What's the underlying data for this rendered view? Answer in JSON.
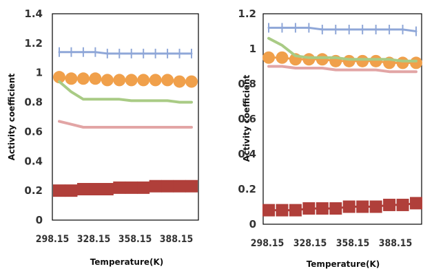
{
  "chart_data": [
    {
      "type": "line",
      "xlabel": "Temperature(K)",
      "ylabel": "Activity coefficient",
      "ylim": [
        0,
        1.4
      ],
      "yticks": [
        "0",
        "0.2",
        "0.4",
        "0.6",
        "0.8",
        "1",
        "1.2",
        "1.4"
      ],
      "xticks": [
        "298.15",
        "328.15",
        "358.15",
        "388.15"
      ],
      "x": [
        298.15,
        308.15,
        318.15,
        328.15,
        338.15,
        348.15,
        358.15,
        368.15,
        378.15,
        388.15,
        398.15,
        408.15
      ],
      "series": [
        {
          "color": "#8FA7D8",
          "marker": "cross",
          "values": [
            1.14,
            1.14,
            1.14,
            1.14,
            1.13,
            1.13,
            1.13,
            1.13,
            1.13,
            1.13,
            1.13,
            1.13
          ]
        },
        {
          "color": "#F0A04B",
          "marker": "circle",
          "values": [
            0.97,
            0.96,
            0.96,
            0.96,
            0.95,
            0.95,
            0.95,
            0.95,
            0.95,
            0.95,
            0.94,
            0.94
          ]
        },
        {
          "color": "#A9CB85",
          "marker": "line",
          "values": [
            0.94,
            0.87,
            0.82,
            0.82,
            0.82,
            0.82,
            0.81,
            0.81,
            0.81,
            0.81,
            0.8,
            0.8
          ]
        },
        {
          "color": "#E2A5A5",
          "marker": "line",
          "values": [
            0.67,
            0.65,
            0.63,
            0.63,
            0.63,
            0.63,
            0.63,
            0.63,
            0.63,
            0.63,
            0.63,
            0.63
          ]
        },
        {
          "color": "#B03F3A",
          "marker": "square",
          "values": [
            0.2,
            0.2,
            0.21,
            0.21,
            0.21,
            0.22,
            0.22,
            0.22,
            0.23,
            0.23,
            0.23,
            0.23
          ]
        }
      ]
    },
    {
      "type": "line",
      "xlabel": "Temperature(K)",
      "ylabel": "Activity coefficient",
      "ylim": [
        0,
        1.2
      ],
      "yticks": [
        "0",
        "0.2",
        "0.4",
        "0.6",
        "0.8",
        "1",
        "1.2"
      ],
      "xticks": [
        "298.15",
        "328.15",
        "358.15",
        "388.15"
      ],
      "x": [
        298.15,
        308.15,
        318.15,
        328.15,
        338.15,
        348.15,
        358.15,
        368.15,
        378.15,
        388.15,
        398.15,
        408.15
      ],
      "series": [
        {
          "color": "#8FA7D8",
          "marker": "cross",
          "values": [
            1.12,
            1.12,
            1.12,
            1.12,
            1.11,
            1.11,
            1.11,
            1.11,
            1.11,
            1.11,
            1.11,
            1.1
          ]
        },
        {
          "color": "#F0A04B",
          "marker": "circle",
          "values": [
            0.95,
            0.95,
            0.94,
            0.94,
            0.94,
            0.93,
            0.93,
            0.93,
            0.93,
            0.92,
            0.92,
            0.92
          ]
        },
        {
          "color": "#A9CB85",
          "marker": "line",
          "values": [
            1.06,
            1.02,
            0.96,
            0.95,
            0.95,
            0.95,
            0.94,
            0.94,
            0.94,
            0.94,
            0.93,
            0.93
          ]
        },
        {
          "color": "#E2A5A5",
          "marker": "line",
          "values": [
            0.9,
            0.9,
            0.89,
            0.89,
            0.89,
            0.88,
            0.88,
            0.88,
            0.88,
            0.87,
            0.87,
            0.87
          ]
        },
        {
          "color": "#B03F3A",
          "marker": "square",
          "values": [
            0.08,
            0.08,
            0.08,
            0.09,
            0.09,
            0.09,
            0.1,
            0.1,
            0.1,
            0.11,
            0.11,
            0.12
          ]
        }
      ]
    }
  ]
}
